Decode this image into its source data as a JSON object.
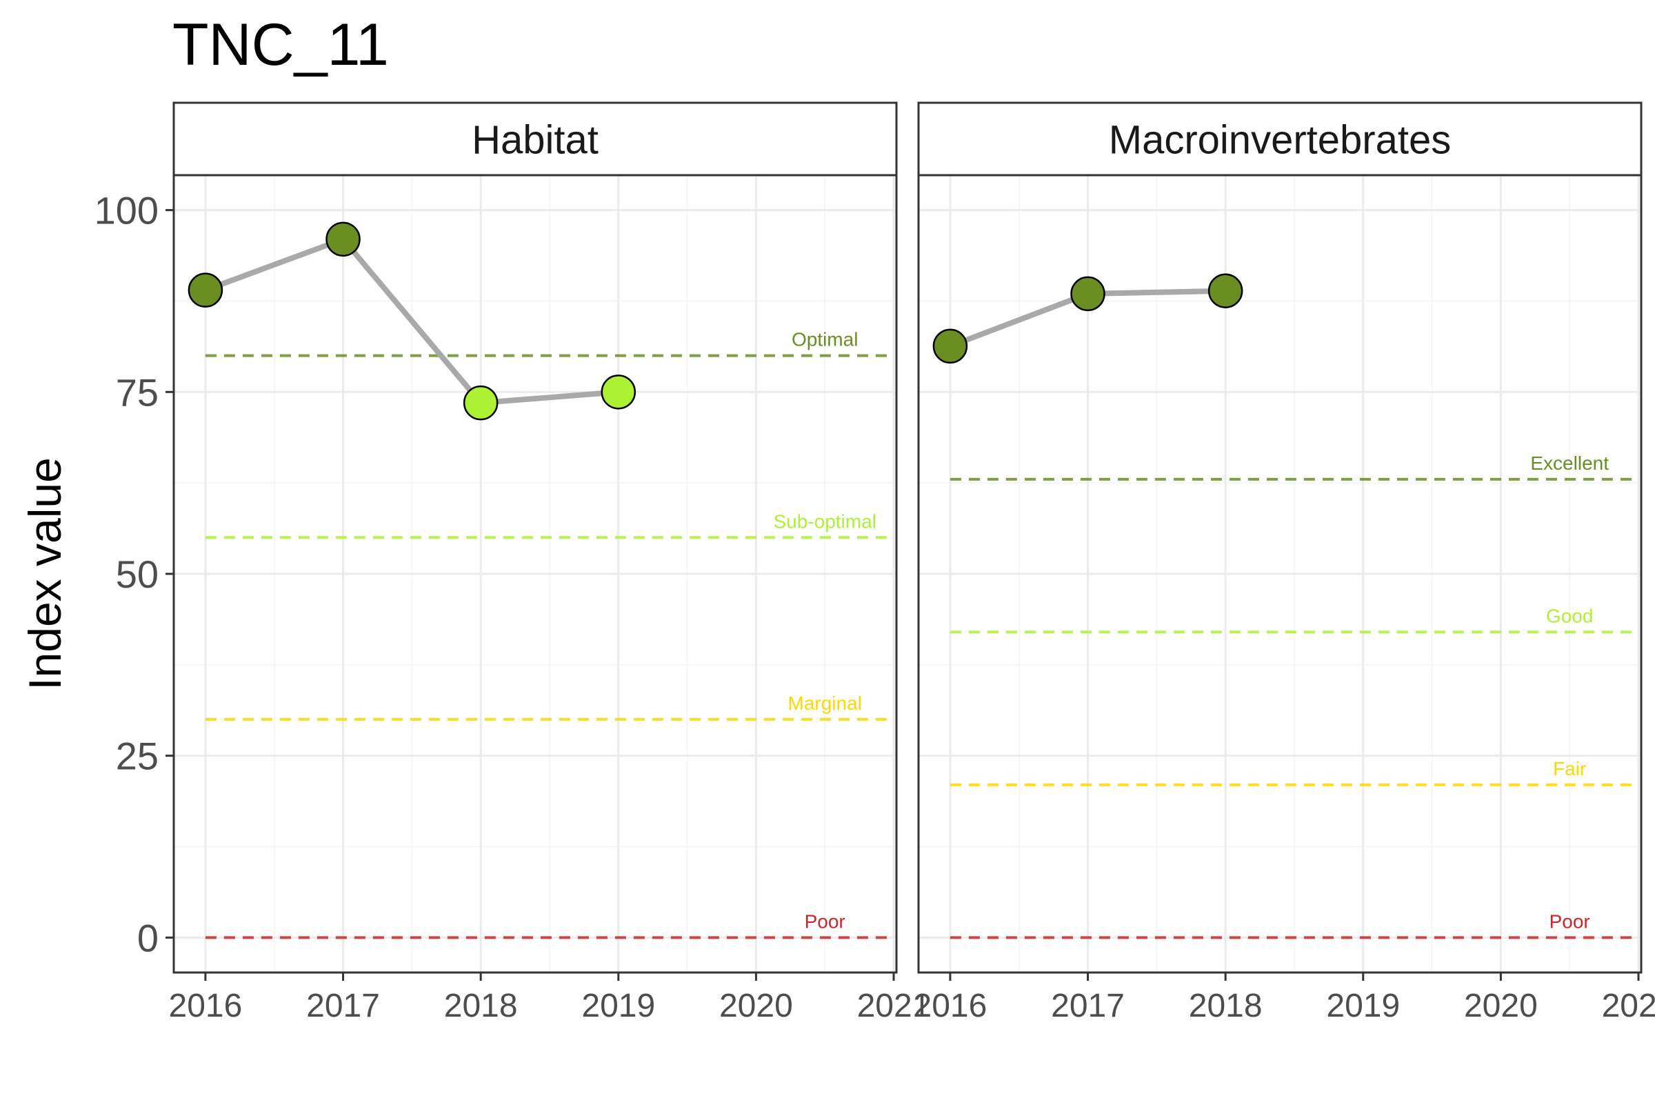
{
  "chart_data": {
    "type": "line",
    "title": "TNC_11",
    "xlabel": "",
    "ylabel": "Index value",
    "xlim": [
      2015.77,
      2021.02
    ],
    "ylim": [
      -4.8,
      104.8
    ],
    "x_ticks": [
      2016,
      2017,
      2018,
      2019,
      2020,
      2021
    ],
    "y_ticks": [
      0,
      25,
      50,
      75,
      100
    ],
    "grid": true,
    "legend": "none",
    "colors": {
      "line": "#A9A9A9",
      "point_dark": "#6B8E23",
      "point_light": "#ADF135",
      "point_stroke": "#000000",
      "strip_border": "#333333",
      "grid_major": "#EBEBEB",
      "grid_minor": "#F4F4F4"
    },
    "panels": [
      {
        "strip": "Habitat",
        "points": [
          {
            "x": 2016,
            "y": 89,
            "color": "#6B8E23"
          },
          {
            "x": 2017,
            "y": 96,
            "color": "#6B8E23"
          },
          {
            "x": 2018,
            "y": 73.5,
            "color": "#ADF135"
          },
          {
            "x": 2019,
            "y": 75,
            "color": "#ADF135"
          }
        ],
        "thresholds": [
          {
            "label": "Optimal",
            "y": 80,
            "color": "#6B8E23"
          },
          {
            "label": "Sub-optimal",
            "y": 55,
            "color": "#ADF135"
          },
          {
            "label": "Marginal",
            "y": 30,
            "color": "#FFD700"
          },
          {
            "label": "Poor",
            "y": 0,
            "color": "#CD2626"
          }
        ]
      },
      {
        "strip": "Macroinvertebrates",
        "points": [
          {
            "x": 2016,
            "y": 81.3,
            "color": "#6B8E23"
          },
          {
            "x": 2017,
            "y": 88.5,
            "color": "#6B8E23"
          },
          {
            "x": 2018,
            "y": 88.9,
            "color": "#6B8E23"
          }
        ],
        "thresholds": [
          {
            "label": "Excellent",
            "y": 63,
            "color": "#6B8E23"
          },
          {
            "label": "Good",
            "y": 42,
            "color": "#ADF135"
          },
          {
            "label": "Fair",
            "y": 21,
            "color": "#FFD700"
          },
          {
            "label": "Poor",
            "y": 0,
            "color": "#CD2626"
          }
        ]
      }
    ]
  }
}
